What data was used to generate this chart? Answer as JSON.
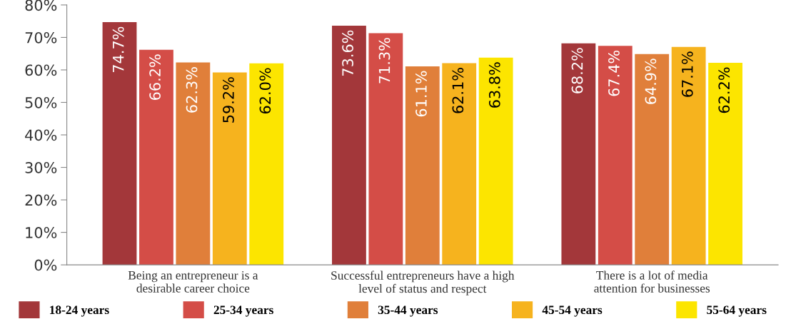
{
  "chart_data": {
    "type": "bar",
    "categories": [
      "Being an entrepreneur is a\ndesirable career choice",
      "Successful entrepreneurs have a high\nlevel of status and respect",
      "There is a lot of media\nattention for businesses"
    ],
    "series": [
      {
        "name": "18-24 years",
        "color": "#a3373a",
        "values": [
          74.7,
          73.6,
          68.2
        ],
        "value_labels": [
          "74.7%",
          "73.6%",
          "68.2%"
        ]
      },
      {
        "name": "25-34 years",
        "color": "#d44d47",
        "values": [
          66.2,
          71.3,
          67.4
        ],
        "value_labels": [
          "66.2%",
          "71.3%",
          "67.4%"
        ]
      },
      {
        "name": "35-44 years",
        "color": "#e07f3a",
        "values": [
          62.3,
          61.1,
          64.9
        ],
        "value_labels": [
          "62.3%",
          "61.1%",
          "64.9%"
        ]
      },
      {
        "name": "45-54 years",
        "color": "#f6b31e",
        "values": [
          59.2,
          62.1,
          67.1
        ],
        "value_labels": [
          "59.2%",
          "62.1%",
          "67.1%"
        ]
      },
      {
        "name": "55-64 years",
        "color": "#fce500",
        "values": [
          62.0,
          63.8,
          62.2
        ],
        "value_labels": [
          "62.0%",
          "63.8%",
          "62.2%"
        ]
      }
    ],
    "ylim": [
      0,
      80
    ],
    "yticks": [
      {
        "value": 0,
        "label": "0%"
      },
      {
        "value": 10,
        "label": "10%"
      },
      {
        "value": 20,
        "label": "20%"
      },
      {
        "value": 30,
        "label": "30%"
      },
      {
        "value": 40,
        "label": "40%"
      },
      {
        "value": 50,
        "label": "50%"
      },
      {
        "value": 60,
        "label": "60%"
      },
      {
        "value": 70,
        "label": "70%"
      },
      {
        "value": 80,
        "label": "80%"
      }
    ],
    "grid": false,
    "legend": "bottom"
  }
}
